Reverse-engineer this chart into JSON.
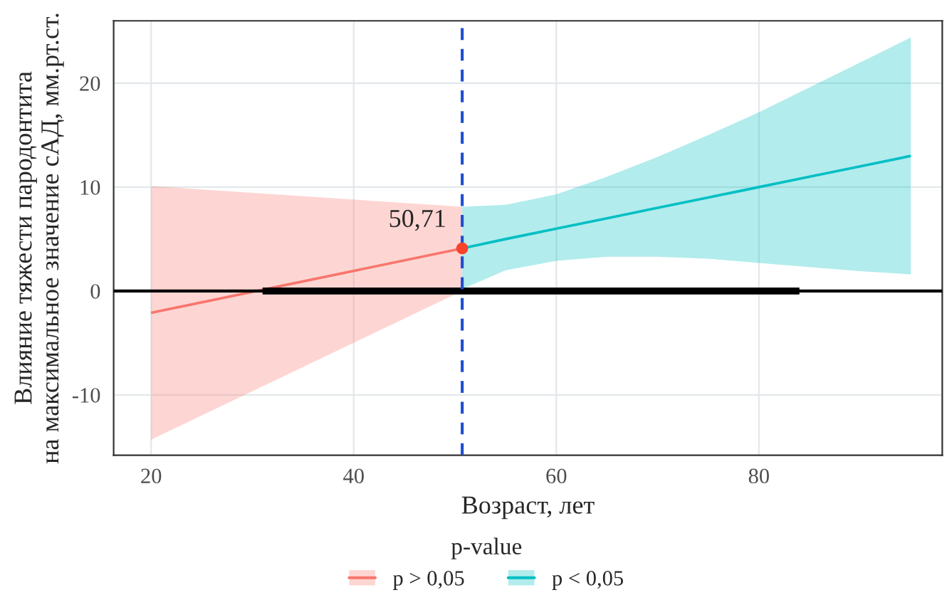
{
  "chart_data": {
    "type": "line",
    "xlabel": "Возраст, лет",
    "ylabel": "Влияние тяжести пародонтита\nна максимальное значение сАД, мм.рт.ст.",
    "legend_title": "p-value",
    "xlim": [
      16.3,
      98.1
    ],
    "ylim": [
      -15.8,
      26.0
    ],
    "xticks": [
      20,
      40,
      60,
      80
    ],
    "yticks": [
      {
        "value": -10,
        "label": "-10"
      },
      0,
      10,
      20
    ],
    "grid": true,
    "legend": "bottom",
    "series": [
      {
        "name": "p > 0,05",
        "color": "#f8766d",
        "x": [
          20,
          50.71
        ],
        "values": [
          -2.1,
          4.1
        ],
        "lower": [
          -14.3,
          0.0
        ],
        "upper": [
          10.1,
          8.1
        ]
      },
      {
        "name": "p < 0,05",
        "color": "#00bfc4",
        "x": [
          50.71,
          55,
          60,
          65,
          70,
          75,
          80,
          85,
          90,
          95
        ],
        "values": [
          4.1,
          5.0,
          6.0,
          7.0,
          8.0,
          9.0,
          10.0,
          11.0,
          12.0,
          13.0
        ],
        "lower": [
          0.2,
          2.0,
          2.9,
          3.3,
          3.3,
          3.1,
          2.7,
          2.3,
          1.9,
          1.6
        ],
        "upper": [
          8.1,
          8.3,
          9.3,
          11.0,
          12.9,
          15.0,
          17.2,
          19.6,
          22.0,
          24.4
        ]
      },
      {
        "color": "#000000",
        "x": [
          31,
          84
        ],
        "values": [
          0,
          0
        ]
      },
      {
        "type": "scatter",
        "color": "#f8442d",
        "x": [
          50.71
        ],
        "values": [
          4.1
        ]
      }
    ],
    "ref_lines": [
      {
        "axis": "y",
        "value": 0,
        "color": "#000000",
        "line_style": "solid"
      },
      {
        "axis": "x",
        "value": 50.71,
        "color": "#1f4fd0",
        "line_style": "dashed"
      }
    ],
    "annotations": [
      {
        "text": "50,71",
        "x": 50.71,
        "y": 4.1
      }
    ]
  }
}
